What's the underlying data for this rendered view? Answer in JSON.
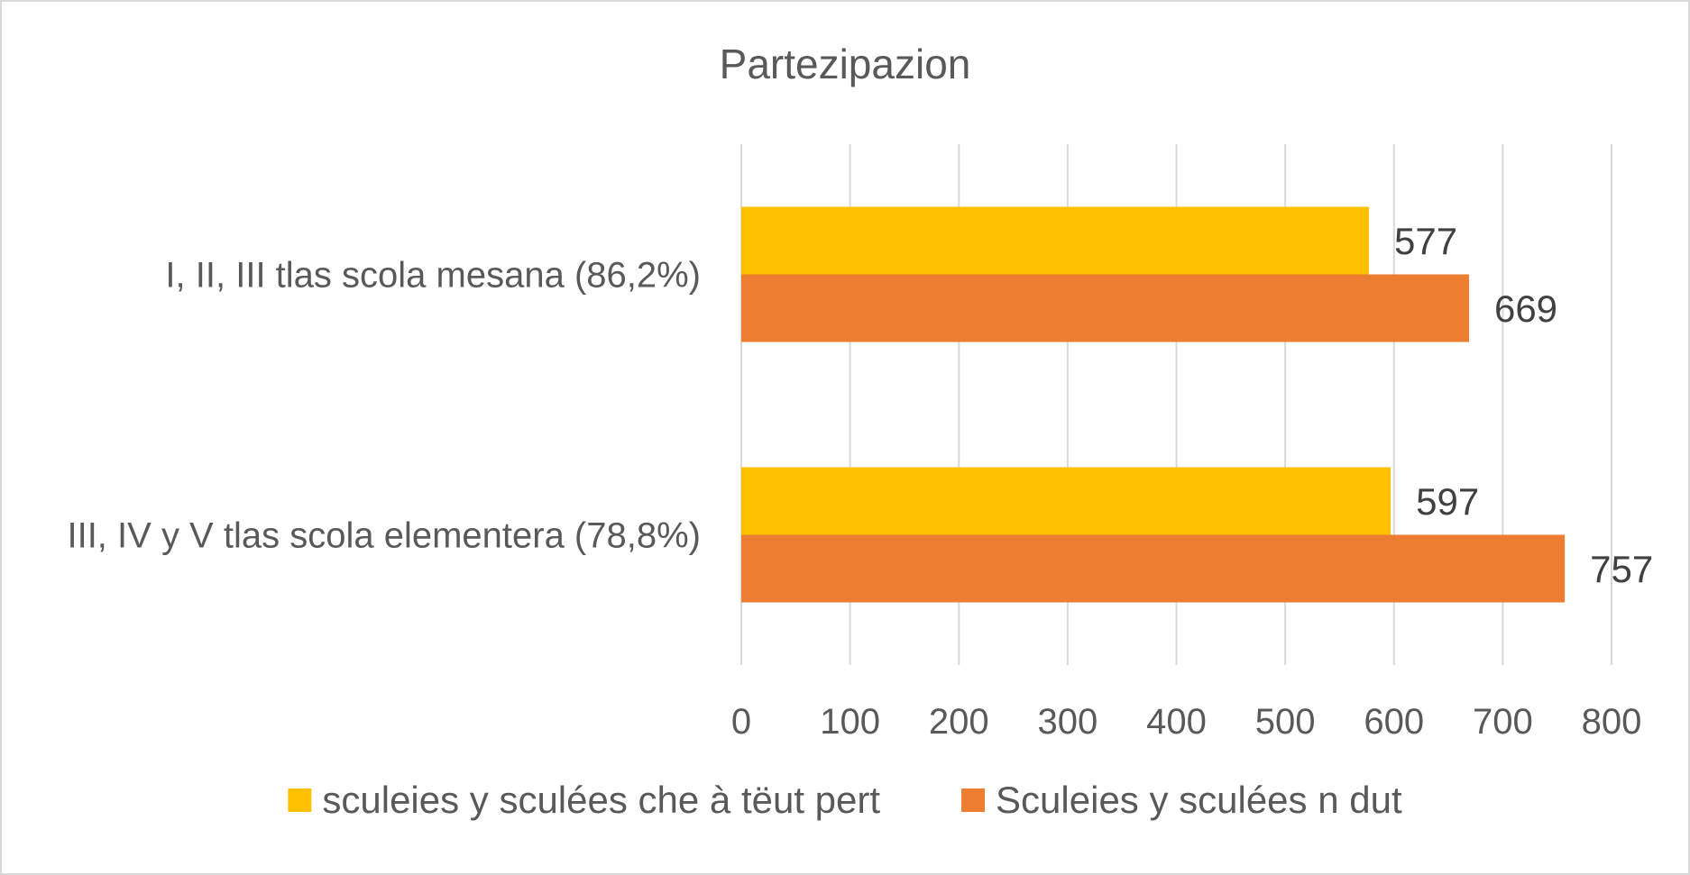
{
  "chart_data": {
    "type": "bar",
    "orientation": "horizontal",
    "title": "Partezipazion",
    "categories": [
      "I, II, III tlas scola mesana (86,2%)",
      "III, IV y V tlas scola elementera (78,8%)"
    ],
    "series": [
      {
        "name": "sculeies y sculées che à tëut pert",
        "values": [
          577,
          597
        ],
        "color": "#FFC000"
      },
      {
        "name": "Sculeies y sculées n dut",
        "values": [
          669,
          757
        ],
        "color": "#ED7D31"
      }
    ],
    "xlim": [
      0,
      800
    ],
    "x_ticks": [
      "0",
      "100",
      "200",
      "300",
      "400",
      "500",
      "600",
      "700",
      "800"
    ],
    "xlabel": "",
    "ylabel": "",
    "grid": "vertical",
    "legend_position": "bottom",
    "data_labels": true
  }
}
